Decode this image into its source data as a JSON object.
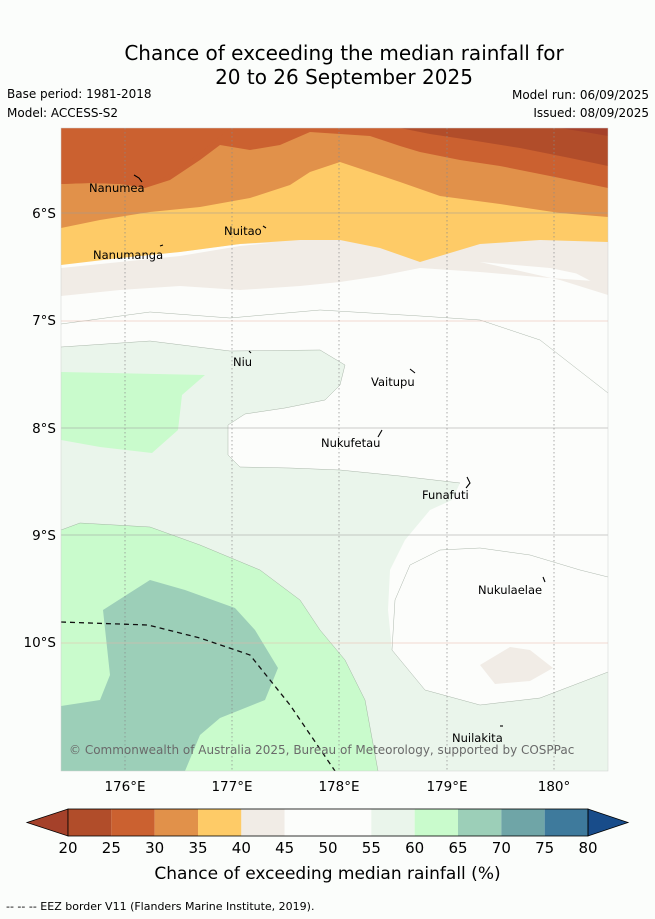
{
  "title": {
    "line1": "Chance of exceeding the median rainfall for",
    "line2": "20 to 26 September 2025"
  },
  "meta": {
    "base_period": "Base period: 1981-2018",
    "model": "Model: ACCESS-S2",
    "model_run": "Model run: 06/09/2025",
    "issued": "Issued: 08/09/2025"
  },
  "axes": {
    "lat_labels": [
      "6°S",
      "7°S",
      "8°S",
      "9°S",
      "10°S"
    ],
    "lon_labels": [
      "176°E",
      "177°E",
      "178°E",
      "179°E",
      "180°"
    ]
  },
  "places": [
    {
      "name": "Nanumea"
    },
    {
      "name": "Nuitao"
    },
    {
      "name": "Nanumanga"
    },
    {
      "name": "Niu"
    },
    {
      "name": "Vaitupu"
    },
    {
      "name": "Nukufetau"
    },
    {
      "name": "Funafuti"
    },
    {
      "name": "Nukulaelae"
    },
    {
      "name": "Nuilakita"
    }
  ],
  "copyright": "© Commonwealth of Australia 2025, Bureau of Meteorology, supported by COSPPac",
  "colorbar": {
    "ticks": [
      "20",
      "25",
      "30",
      "35",
      "40",
      "45",
      "50",
      "55",
      "60",
      "65",
      "70",
      "75",
      "80"
    ],
    "colors": [
      "#a5412a",
      "#b14d2a",
      "#cb6130",
      "#e1914a",
      "#fecb67",
      "#f1ece6",
      "#fcfdfb",
      "#fcfdfb",
      "#eaf5eb",
      "#c9fbcc",
      "#9ccfb8",
      "#6fa5a7",
      "#3e7a9c",
      "#184c8a"
    ],
    "label": "Chance of exceeding median rainfall (%)"
  },
  "footer": "--  --  -- EEZ border V11 (Flanders Marine Institute, 2019)."
}
